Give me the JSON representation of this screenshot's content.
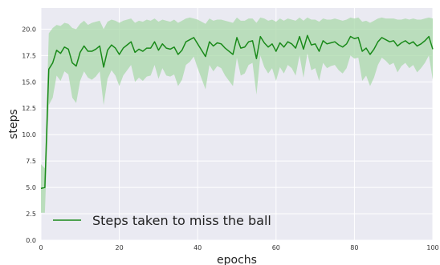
{
  "chart_data": {
    "type": "line",
    "title": "",
    "xlabel": "epochs",
    "ylabel": "steps",
    "xlim": [
      0,
      100
    ],
    "ylim": [
      0,
      22
    ],
    "x_ticks": [
      0,
      20,
      40,
      60,
      80,
      100
    ],
    "x_tick_labels": [
      "0",
      "20",
      "40",
      "60",
      "80",
      "100"
    ],
    "y_ticks": [
      0.0,
      2.5,
      5.0,
      7.5,
      10.0,
      12.5,
      15.0,
      17.5,
      20.0
    ],
    "y_tick_labels": [
      "0.0",
      "2.5",
      "5.0",
      "7.5",
      "10.0",
      "12.5",
      "15.0",
      "17.5",
      "20.0"
    ],
    "grid": true,
    "legend_position": "lower-left",
    "colors": {
      "line": "#1a8a1a",
      "band": "#a9d8a9",
      "plot_background": "#eaeaf2",
      "grid": "#ffffff"
    },
    "series": [
      {
        "name": "Steps taken to miss the ball",
        "x": [
          0,
          1,
          2,
          3,
          4,
          5,
          6,
          7,
          8,
          9,
          10,
          11,
          12,
          13,
          14,
          15,
          16,
          17,
          18,
          19,
          20,
          21,
          22,
          23,
          24,
          25,
          26,
          27,
          28,
          29,
          30,
          31,
          32,
          33,
          34,
          35,
          36,
          37,
          38,
          39,
          40,
          41,
          42,
          43,
          44,
          45,
          46,
          47,
          48,
          49,
          50,
          51,
          52,
          53,
          54,
          55,
          56,
          57,
          58,
          59,
          60,
          61,
          62,
          63,
          64,
          65,
          66,
          67,
          68,
          69,
          70,
          71,
          72,
          73,
          74,
          75,
          76,
          77,
          78,
          79,
          80,
          81,
          82,
          83,
          84,
          85,
          86,
          87,
          88,
          89,
          90,
          91,
          92,
          93,
          94,
          95,
          96,
          97,
          98,
          99,
          100
        ],
        "y": [
          4.9,
          5.0,
          16.2,
          16.8,
          18.0,
          17.7,
          18.3,
          18.1,
          16.8,
          16.5,
          17.8,
          18.4,
          17.9,
          17.9,
          18.1,
          18.4,
          16.4,
          18.0,
          18.5,
          18.2,
          17.6,
          18.2,
          18.5,
          18.8,
          17.8,
          18.1,
          17.9,
          18.2,
          18.2,
          18.8,
          18.0,
          18.6,
          18.2,
          18.1,
          18.3,
          17.6,
          18.0,
          18.8,
          19.0,
          19.2,
          18.6,
          18.0,
          17.4,
          18.8,
          18.4,
          18.7,
          18.6,
          18.2,
          17.9,
          17.6,
          19.2,
          18.2,
          18.3,
          18.8,
          18.9,
          17.2,
          19.3,
          18.7,
          18.3,
          18.6,
          17.9,
          18.7,
          18.3,
          18.8,
          18.6,
          18.2,
          19.3,
          18.1,
          19.4,
          18.5,
          18.6,
          17.9,
          18.9,
          18.6,
          18.7,
          18.8,
          18.5,
          18.3,
          18.6,
          19.3,
          19.1,
          19.2,
          17.9,
          18.2,
          17.6,
          18.1,
          18.8,
          19.2,
          19.0,
          18.8,
          18.9,
          18.4,
          18.7,
          18.9,
          18.6,
          18.8,
          18.4,
          18.6,
          18.9,
          19.3,
          18.1
        ],
        "upper": [
          7.2,
          6.8,
          19.6,
          20.1,
          20.4,
          20.3,
          20.6,
          20.5,
          20.1,
          20.0,
          20.5,
          20.8,
          20.4,
          20.6,
          20.7,
          20.8,
          20.0,
          20.7,
          20.9,
          20.8,
          20.6,
          20.8,
          20.9,
          21.0,
          20.6,
          20.8,
          20.7,
          20.9,
          20.8,
          21.0,
          20.7,
          20.9,
          20.8,
          20.7,
          20.9,
          20.6,
          20.8,
          21.0,
          21.1,
          21.0,
          20.9,
          20.7,
          20.5,
          21.0,
          20.8,
          20.9,
          20.9,
          20.8,
          20.7,
          20.6,
          21.1,
          20.8,
          20.8,
          21.0,
          21.0,
          20.6,
          21.1,
          21.0,
          20.8,
          20.9,
          20.7,
          21.0,
          20.8,
          21.0,
          20.9,
          20.8,
          21.1,
          20.8,
          21.1,
          20.9,
          20.9,
          20.7,
          21.0,
          20.9,
          20.9,
          21.0,
          20.9,
          20.8,
          20.9,
          21.1,
          21.0,
          21.1,
          20.7,
          20.8,
          20.6,
          20.8,
          21.0,
          21.1,
          21.0,
          21.0,
          21.0,
          20.9,
          20.9,
          21.0,
          20.9,
          21.0,
          20.9,
          20.9,
          21.0,
          21.1,
          21.0
        ],
        "lower": [
          2.6,
          2.6,
          12.8,
          13.5,
          15.6,
          15.1,
          16.0,
          15.7,
          13.5,
          13.0,
          15.1,
          16.0,
          15.4,
          15.2,
          15.5,
          16.0,
          12.8,
          15.3,
          16.1,
          15.6,
          14.6,
          15.6,
          16.1,
          16.6,
          15.0,
          15.4,
          15.1,
          15.5,
          15.6,
          16.6,
          15.3,
          16.3,
          15.6,
          15.5,
          15.7,
          14.6,
          15.2,
          16.6,
          16.9,
          17.4,
          16.3,
          15.3,
          14.3,
          16.6,
          16.0,
          16.5,
          16.3,
          15.6,
          15.1,
          14.6,
          17.3,
          15.6,
          15.8,
          16.6,
          16.8,
          13.8,
          17.5,
          16.4,
          15.8,
          16.3,
          15.1,
          16.4,
          15.8,
          16.6,
          16.3,
          15.6,
          17.5,
          15.4,
          17.7,
          16.1,
          16.3,
          15.1,
          16.8,
          16.3,
          16.5,
          16.6,
          16.1,
          15.8,
          16.3,
          17.5,
          17.2,
          17.3,
          15.1,
          15.6,
          14.6,
          15.4,
          16.6,
          17.3,
          17.0,
          16.6,
          16.8,
          15.9,
          16.5,
          16.8,
          16.3,
          16.6,
          15.9,
          16.3,
          16.8,
          17.5,
          15.2
        ]
      }
    ]
  }
}
